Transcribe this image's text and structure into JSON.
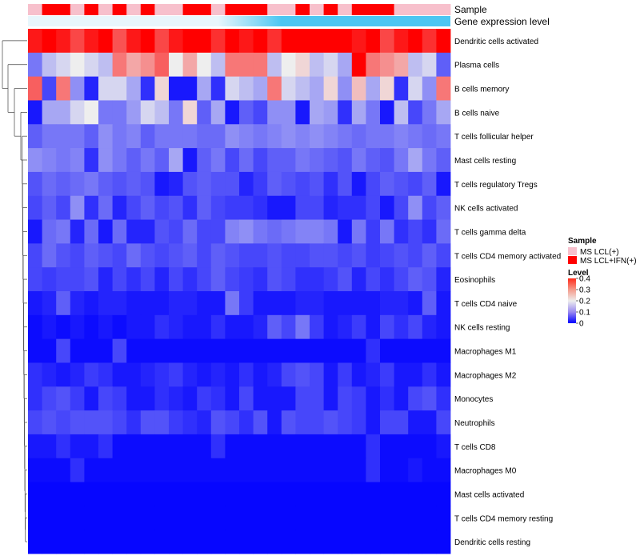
{
  "chart_data": {
    "type": "heatmap",
    "title": "",
    "annotation_tracks": [
      {
        "name": "Sample",
        "values": [
          "MS LCL(+)",
          "MS LCL+IFN(+)",
          "MS LCL+IFN(+)",
          "MS LCL(+)",
          "MS LCL+IFN(+)",
          "MS LCL(+)",
          "MS LCL+IFN(+)",
          "MS LCL(+)",
          "MS LCL+IFN(+)",
          "MS LCL(+)",
          "MS LCL(+)",
          "MS LCL+IFN(+)",
          "MS LCL+IFN(+)",
          "MS LCL(+)",
          "MS LCL+IFN(+)",
          "MS LCL+IFN(+)",
          "MS LCL+IFN(+)",
          "MS LCL(+)",
          "MS LCL(+)",
          "MS LCL+IFN(+)",
          "MS LCL(+)",
          "MS LCL+IFN(+)",
          "MS LCL(+)",
          "MS LCL+IFN(+)",
          "MS LCL+IFN(+)",
          "MS LCL+IFN(+)",
          "MS LCL(+)",
          "MS LCL(+)",
          "MS LCL(+)",
          "MS LCL(+)"
        ]
      },
      {
        "name": "Gene expression level",
        "gradient": [
          "#e8f6fc",
          "#4cc6f2"
        ]
      }
    ],
    "rows": [
      "Dendritic cells activated",
      "Plasma cells",
      "B cells memory",
      "B cells naive",
      "T cells follicular helper",
      "Mast cells resting",
      "T cells regulatory  Tregs",
      "NK cells activated",
      "T cells gamma delta",
      "T cells CD4 memory activated",
      "Eosinophils",
      "T cells CD4 naive",
      "NK cells resting",
      "Macrophages M1",
      "Macrophages M2",
      "Monocytes",
      "Neutrophils",
      "T cells CD8",
      "Macrophages M0",
      "Mast cells activated",
      "T cells CD4 memory resting",
      "Dendritic cells resting"
    ],
    "matrix": [
      [
        0.38,
        0.4,
        0.38,
        0.34,
        0.38,
        0.4,
        0.33,
        0.38,
        0.4,
        0.34,
        0.38,
        0.4,
        0.4,
        0.36,
        0.4,
        0.38,
        0.4,
        0.36,
        0.4,
        0.4,
        0.4,
        0.4,
        0.4,
        0.38,
        0.4,
        0.34,
        0.38,
        0.4,
        0.36,
        0.4
      ],
      [
        0.1,
        0.16,
        0.18,
        0.2,
        0.18,
        0.16,
        0.3,
        0.26,
        0.28,
        0.32,
        0.2,
        0.26,
        0.2,
        0.16,
        0.3,
        0.3,
        0.3,
        0.16,
        0.2,
        0.22,
        0.16,
        0.18,
        0.14,
        0.4,
        0.3,
        0.28,
        0.26,
        0.16,
        0.18,
        0.08
      ],
      [
        0.32,
        0.06,
        0.3,
        0.12,
        0.03,
        0.18,
        0.18,
        0.14,
        0.04,
        0.22,
        0.02,
        0.02,
        0.14,
        0.04,
        0.18,
        0.16,
        0.14,
        0.3,
        0.18,
        0.16,
        0.14,
        0.22,
        0.12,
        0.24,
        0.14,
        0.22,
        0.04,
        0.18,
        0.12,
        0.3
      ],
      [
        0.02,
        0.14,
        0.14,
        0.18,
        0.2,
        0.1,
        0.1,
        0.13,
        0.18,
        0.16,
        0.1,
        0.22,
        0.08,
        0.14,
        0.02,
        0.08,
        0.06,
        0.12,
        0.12,
        0.02,
        0.14,
        0.13,
        0.04,
        0.14,
        0.1,
        0.02,
        0.16,
        0.06,
        0.1,
        0.14
      ],
      [
        0.08,
        0.1,
        0.1,
        0.1,
        0.08,
        0.12,
        0.1,
        0.11,
        0.08,
        0.1,
        0.1,
        0.1,
        0.09,
        0.09,
        0.12,
        0.11,
        0.1,
        0.11,
        0.12,
        0.11,
        0.12,
        0.11,
        0.1,
        0.09,
        0.1,
        0.1,
        0.11,
        0.1,
        0.09,
        0.1
      ],
      [
        0.12,
        0.11,
        0.1,
        0.11,
        0.04,
        0.12,
        0.1,
        0.08,
        0.1,
        0.08,
        0.14,
        0.02,
        0.08,
        0.1,
        0.06,
        0.09,
        0.06,
        0.08,
        0.08,
        0.1,
        0.09,
        0.08,
        0.07,
        0.1,
        0.08,
        0.07,
        0.1,
        0.14,
        0.1,
        0.08
      ],
      [
        0.07,
        0.09,
        0.08,
        0.09,
        0.1,
        0.08,
        0.07,
        0.08,
        0.07,
        0.02,
        0.03,
        0.07,
        0.08,
        0.07,
        0.07,
        0.03,
        0.05,
        0.08,
        0.07,
        0.06,
        0.07,
        0.04,
        0.07,
        0.02,
        0.06,
        0.08,
        0.07,
        0.06,
        0.08,
        0.02
      ],
      [
        0.06,
        0.08,
        0.06,
        0.12,
        0.04,
        0.09,
        0.03,
        0.06,
        0.08,
        0.06,
        0.07,
        0.04,
        0.08,
        0.06,
        0.05,
        0.05,
        0.04,
        0.02,
        0.02,
        0.06,
        0.06,
        0.03,
        0.04,
        0.04,
        0.06,
        0.02,
        0.06,
        0.12,
        0.06,
        0.08
      ],
      [
        0.02,
        0.09,
        0.1,
        0.03,
        0.09,
        0.02,
        0.09,
        0.03,
        0.03,
        0.07,
        0.06,
        0.09,
        0.06,
        0.06,
        0.11,
        0.12,
        0.1,
        0.09,
        0.1,
        0.11,
        0.11,
        0.1,
        0.02,
        0.1,
        0.05,
        0.1,
        0.04,
        0.06,
        0.04,
        0.09
      ],
      [
        0.06,
        0.09,
        0.07,
        0.06,
        0.08,
        0.07,
        0.06,
        0.09,
        0.07,
        0.06,
        0.07,
        0.08,
        0.06,
        0.08,
        0.07,
        0.06,
        0.06,
        0.07,
        0.06,
        0.06,
        0.07,
        0.07,
        0.06,
        0.07,
        0.05,
        0.06,
        0.07,
        0.06,
        0.08,
        0.06
      ],
      [
        0.06,
        0.05,
        0.06,
        0.06,
        0.07,
        0.03,
        0.06,
        0.04,
        0.06,
        0.03,
        0.06,
        0.04,
        0.06,
        0.08,
        0.06,
        0.05,
        0.04,
        0.07,
        0.06,
        0.04,
        0.04,
        0.05,
        0.07,
        0.03,
        0.06,
        0.04,
        0.06,
        0.08,
        0.07,
        0.03
      ],
      [
        0.02,
        0.03,
        0.08,
        0.03,
        0.02,
        0.03,
        0.03,
        0.02,
        0.02,
        0.02,
        0.03,
        0.03,
        0.02,
        0.02,
        0.1,
        0.05,
        0.02,
        0.02,
        0.02,
        0.03,
        0.03,
        0.02,
        0.02,
        0.02,
        0.02,
        0.03,
        0.03,
        0.02,
        0.08,
        0.02
      ],
      [
        0.01,
        0.02,
        0.01,
        0.02,
        0.01,
        0.02,
        0.01,
        0.02,
        0.02,
        0.04,
        0.03,
        0.02,
        0.02,
        0.04,
        0.02,
        0.02,
        0.03,
        0.08,
        0.06,
        0.1,
        0.05,
        0.02,
        0.03,
        0.05,
        0.02,
        0.06,
        0.04,
        0.06,
        0.03,
        0.02
      ],
      [
        0.01,
        0.01,
        0.06,
        0.01,
        0.01,
        0.01,
        0.06,
        0.01,
        0.01,
        0.01,
        0.01,
        0.01,
        0.01,
        0.01,
        0.01,
        0.01,
        0.01,
        0.01,
        0.01,
        0.01,
        0.01,
        0.01,
        0.01,
        0.01,
        0.04,
        0.01,
        0.01,
        0.01,
        0.01,
        0.01
      ],
      [
        0.04,
        0.03,
        0.02,
        0.03,
        0.05,
        0.04,
        0.02,
        0.02,
        0.03,
        0.04,
        0.05,
        0.03,
        0.02,
        0.03,
        0.02,
        0.04,
        0.02,
        0.03,
        0.06,
        0.07,
        0.06,
        0.02,
        0.05,
        0.02,
        0.03,
        0.05,
        0.02,
        0.02,
        0.04,
        0.02
      ],
      [
        0.04,
        0.06,
        0.07,
        0.05,
        0.02,
        0.06,
        0.05,
        0.02,
        0.02,
        0.04,
        0.03,
        0.02,
        0.05,
        0.04,
        0.02,
        0.06,
        0.02,
        0.02,
        0.02,
        0.06,
        0.06,
        0.02,
        0.06,
        0.05,
        0.02,
        0.04,
        0.02,
        0.06,
        0.07,
        0.04
      ],
      [
        0.06,
        0.07,
        0.06,
        0.07,
        0.07,
        0.07,
        0.06,
        0.04,
        0.07,
        0.07,
        0.05,
        0.04,
        0.03,
        0.07,
        0.06,
        0.04,
        0.07,
        0.02,
        0.07,
        0.06,
        0.06,
        0.07,
        0.06,
        0.05,
        0.02,
        0.06,
        0.06,
        0.02,
        0.02,
        0.06
      ],
      [
        0.02,
        0.02,
        0.04,
        0.02,
        0.02,
        0.04,
        0.01,
        0.01,
        0.01,
        0.01,
        0.01,
        0.01,
        0.01,
        0.04,
        0.01,
        0.01,
        0.01,
        0.01,
        0.01,
        0.01,
        0.01,
        0.01,
        0.01,
        0.01,
        0.04,
        0.01,
        0.01,
        0.01,
        0.01,
        0.02
      ],
      [
        0.01,
        0.01,
        0.01,
        0.04,
        0.01,
        0.01,
        0.01,
        0.01,
        0.01,
        0.01,
        0.01,
        0.01,
        0.01,
        0.01,
        0.01,
        0.01,
        0.01,
        0.01,
        0.01,
        0.01,
        0.01,
        0.01,
        0.01,
        0.01,
        0.04,
        0.01,
        0.01,
        0.02,
        0.01,
        0.01
      ],
      [
        0.005,
        0.005,
        0.005,
        0.005,
        0.005,
        0.005,
        0.005,
        0.005,
        0.005,
        0.005,
        0.005,
        0.005,
        0.005,
        0.005,
        0.005,
        0.005,
        0.005,
        0.005,
        0.005,
        0.005,
        0.005,
        0.005,
        0.005,
        0.005,
        0.005,
        0.005,
        0.005,
        0.005,
        0.005,
        0.005
      ],
      [
        0.005,
        0.005,
        0.005,
        0.005,
        0.005,
        0.005,
        0.005,
        0.005,
        0.005,
        0.005,
        0.005,
        0.005,
        0.005,
        0.005,
        0.005,
        0.005,
        0.005,
        0.005,
        0.005,
        0.005,
        0.005,
        0.005,
        0.005,
        0.005,
        0.005,
        0.005,
        0.005,
        0.005,
        0.005,
        0.005
      ],
      [
        0.005,
        0.005,
        0.005,
        0.005,
        0.005,
        0.005,
        0.005,
        0.005,
        0.005,
        0.005,
        0.005,
        0.005,
        0.005,
        0.005,
        0.005,
        0.005,
        0.005,
        0.005,
        0.005,
        0.005,
        0.005,
        0.005,
        0.005,
        0.005,
        0.005,
        0.005,
        0.005,
        0.005,
        0.005,
        0.005
      ]
    ],
    "color_scale": {
      "title": "Level",
      "domain": [
        0,
        0.2,
        0.4
      ],
      "colors": [
        "#0000ff",
        "#eeeeee",
        "#ff0000"
      ],
      "ticks": [
        "0.4",
        "0.3",
        "0.2",
        "0.1",
        "0"
      ]
    },
    "legend": {
      "sample_title": "Sample",
      "sample_entries": [
        {
          "label": "MS LCL(+)",
          "color": "#f7c0cc"
        },
        {
          "label": "MS LCL+IFN(+)",
          "color": "#ff0000"
        }
      ],
      "placement": "right"
    },
    "row_dendrogram": true
  }
}
